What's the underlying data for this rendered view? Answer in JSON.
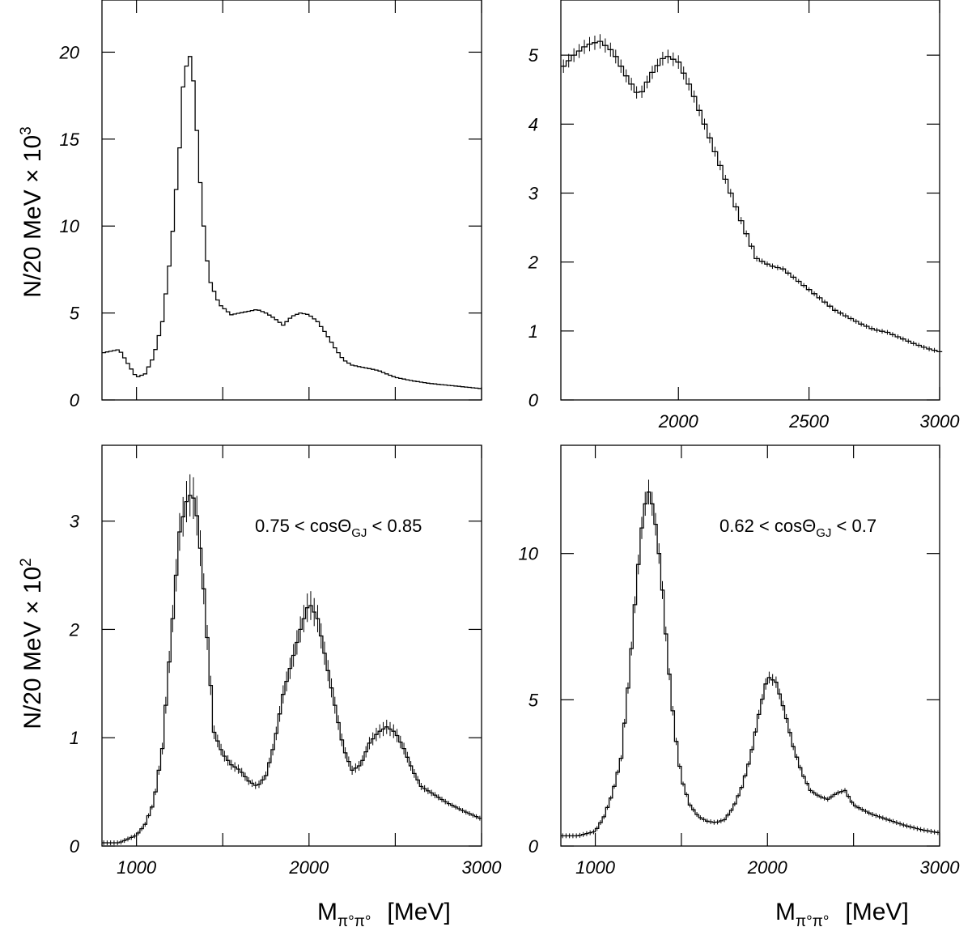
{
  "texts": {
    "ylabel_top_main": "N/20 MeV × 10",
    "ylabel_top_exp": "3",
    "ylabel_bottom_main": "N/20 MeV × 10",
    "ylabel_bottom_exp": "2",
    "xlabel_main": "M",
    "xlabel_sub": "π°π°",
    "xlabel_unit": "[MeV]",
    "cut_left_a": "0.75 < cosΘ",
    "cut_left_sub": "GJ",
    "cut_left_b": " < 0.85",
    "cut_right_a": "0.62 < cosΘ",
    "cut_right_sub": "GJ",
    "cut_right_b": " < 0.7"
  },
  "chart_data": [
    {
      "type": "histogram",
      "panel": "top-left",
      "xlim": [
        800,
        3000
      ],
      "ylim": [
        0,
        23
      ],
      "yticks": [
        0,
        5,
        10,
        15,
        20
      ],
      "xticks": [],
      "errors": false,
      "x": [
        800,
        900,
        1000,
        1050,
        1100,
        1150,
        1200,
        1250,
        1270,
        1300,
        1320,
        1340,
        1380,
        1420,
        1480,
        1550,
        1600,
        1650,
        1700,
        1750,
        1800,
        1850,
        1900,
        1950,
        2000,
        2050,
        2100,
        2150,
        2200,
        2250,
        2300,
        2400,
        2500,
        2600,
        2700,
        2800,
        2900,
        3000
      ],
      "y": [
        2.7,
        2.9,
        1.3,
        1.5,
        2.5,
        4.5,
        8.5,
        14.5,
        18.0,
        19.8,
        19.7,
        17.0,
        11.0,
        7.0,
        5.5,
        4.9,
        5.0,
        5.1,
        5.2,
        5.0,
        4.7,
        4.3,
        4.8,
        5.0,
        4.9,
        4.5,
        3.8,
        3.0,
        2.3,
        2.0,
        1.9,
        1.7,
        1.3,
        1.1,
        0.95,
        0.85,
        0.75,
        0.65
      ]
    },
    {
      "type": "histogram",
      "panel": "top-right",
      "xlim": [
        1550,
        3000
      ],
      "ylim": [
        0,
        5.8
      ],
      "yticks": [
        0,
        1,
        2,
        3,
        4,
        5
      ],
      "xticks": [
        2000,
        2500,
        3000
      ],
      "errors": true,
      "x": [
        1550,
        1600,
        1650,
        1700,
        1750,
        1800,
        1850,
        1900,
        1950,
        2000,
        2050,
        2100,
        2150,
        2200,
        2250,
        2300,
        2350,
        2400,
        2450,
        2500,
        2550,
        2600,
        2650,
        2700,
        2750,
        2800,
        2850,
        2900,
        2950,
        3000
      ],
      "y": [
        4.8,
        5.0,
        5.15,
        5.2,
        5.05,
        4.7,
        4.4,
        4.75,
        5.0,
        4.9,
        4.5,
        4.0,
        3.5,
        3.0,
        2.5,
        2.05,
        1.95,
        1.9,
        1.75,
        1.6,
        1.45,
        1.3,
        1.2,
        1.1,
        1.02,
        0.98,
        0.9,
        0.82,
        0.75,
        0.7
      ]
    },
    {
      "type": "histogram",
      "panel": "bottom-left",
      "xlim": [
        800,
        3000
      ],
      "ylim": [
        0,
        3.7
      ],
      "yticks": [
        0,
        1,
        2,
        3
      ],
      "xticks": [
        1000,
        2000,
        3000
      ],
      "errors": true,
      "x": [
        800,
        900,
        1000,
        1050,
        1100,
        1150,
        1200,
        1250,
        1300,
        1340,
        1380,
        1420,
        1450,
        1500,
        1550,
        1600,
        1650,
        1700,
        1750,
        1800,
        1850,
        1900,
        1950,
        2000,
        2050,
        2100,
        2150,
        2200,
        2250,
        2300,
        2350,
        2400,
        2450,
        2500,
        2550,
        2600,
        2650,
        2700,
        2800,
        2900,
        3000
      ],
      "y": [
        0.03,
        0.03,
        0.1,
        0.2,
        0.4,
        0.9,
        1.9,
        2.9,
        3.25,
        3.2,
        2.6,
        1.7,
        1.05,
        0.85,
        0.75,
        0.7,
        0.6,
        0.55,
        0.65,
        0.95,
        1.4,
        1.7,
        2.0,
        2.25,
        2.1,
        1.7,
        1.3,
        0.9,
        0.7,
        0.75,
        0.95,
        1.05,
        1.1,
        1.05,
        0.9,
        0.7,
        0.55,
        0.5,
        0.4,
        0.32,
        0.25
      ]
    },
    {
      "type": "histogram",
      "panel": "bottom-right",
      "xlim": [
        800,
        3000
      ],
      "ylim": [
        0,
        13.7
      ],
      "yticks": [
        0,
        5,
        10
      ],
      "xticks": [
        1000,
        2000,
        3000
      ],
      "errors": true,
      "x": [
        800,
        900,
        1000,
        1050,
        1100,
        1150,
        1200,
        1240,
        1280,
        1310,
        1340,
        1380,
        1420,
        1460,
        1500,
        1550,
        1600,
        1650,
        1700,
        1750,
        1800,
        1850,
        1900,
        1950,
        2000,
        2050,
        2100,
        2150,
        2200,
        2250,
        2300,
        2350,
        2400,
        2450,
        2500,
        2600,
        2700,
        2800,
        2900,
        3000
      ],
      "y": [
        0.35,
        0.35,
        0.5,
        1.0,
        1.8,
        3.0,
        6.0,
        9.0,
        11.5,
        12.1,
        11.5,
        9.5,
        6.5,
        4.0,
        2.3,
        1.4,
        1.0,
        0.85,
        0.8,
        0.9,
        1.3,
        2.0,
        3.0,
        4.5,
        5.8,
        5.6,
        4.6,
        3.4,
        2.5,
        1.9,
        1.7,
        1.6,
        1.8,
        1.9,
        1.4,
        1.1,
        0.9,
        0.7,
        0.55,
        0.45
      ]
    }
  ]
}
